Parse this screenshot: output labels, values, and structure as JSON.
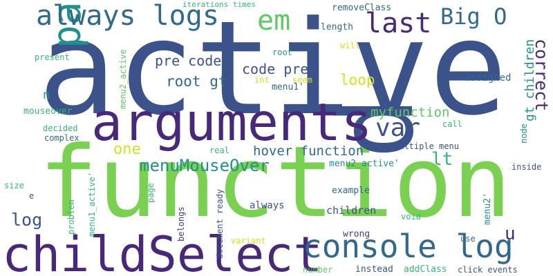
{
  "colors": {
    "background": "#ffffff",
    "dark_blue": "#3b528b",
    "purple": "#482878",
    "teal": "#21918c",
    "blue": "#31688e",
    "green": "#5ec962",
    "lime": "#7ad151",
    "yellow": "#d2e21b",
    "sea_green": "#35b779",
    "navy": "#443983"
  },
  "words": [
    {
      "text": "active",
      "color": "#3b528b"
    },
    {
      "text": "function",
      "color": "#7ad151"
    },
    {
      "text": "p",
      "color": "#3b528b"
    },
    {
      "text": "arguments",
      "color": "#482878"
    },
    {
      "text": "childSelect",
      "color": "#482878"
    },
    {
      "text": "console log",
      "color": "#31688e"
    },
    {
      "text": "parent",
      "color": "#21918c"
    },
    {
      "text": "always logs",
      "color": "#31688e"
    },
    {
      "text": "em",
      "color": "#5ec962"
    },
    {
      "text": "last",
      "color": "#482878"
    },
    {
      "text": "Big O",
      "color": "#31688e"
    },
    {
      "text": "var",
      "color": "#3b528b"
    },
    {
      "text": "correct",
      "color": "#482878"
    },
    {
      "text": "gt children",
      "color": "#21918c"
    },
    {
      "text": "pre code",
      "color": "#3b528b"
    },
    {
      "text": "code pre",
      "color": "#3b528b"
    },
    {
      "text": "root gt",
      "color": "#31688e"
    },
    {
      "text": "loop",
      "color": "#d2e21b"
    },
    {
      "text": "menuMouseOver",
      "color": "#21918c"
    },
    {
      "text": "one",
      "color": "#d2e21b"
    },
    {
      "text": "hover function",
      "color": "#31688e"
    },
    {
      "text": "myfunction",
      "color": "#5ec962"
    },
    {
      "text": "lt",
      "color": "#35b779"
    },
    {
      "text": "log",
      "color": "#3b528b"
    },
    {
      "text": "u",
      "color": "#482878"
    },
    {
      "text": "n",
      "color": "#21918c"
    },
    {
      "text": "iterations times",
      "color": "#35b779"
    },
    {
      "text": "seem",
      "color": "#d2e21b"
    },
    {
      "text": "removeClass",
      "color": "#31688e"
    },
    {
      "text": "length",
      "color": "#31688e"
    },
    {
      "text": "will",
      "color": "#d2e21b"
    },
    {
      "text": "menu2_active",
      "color": "#5ec962"
    },
    {
      "text": "present",
      "color": "#35b779"
    },
    {
      "text": "root",
      "color": "#21918c"
    },
    {
      "text": "int",
      "color": "#d2e21b"
    },
    {
      "text": "menu1'",
      "color": "#31688e"
    },
    {
      "text": "assigned",
      "color": "#31688e"
    },
    {
      "text": "mouseover",
      "color": "#35b779"
    },
    {
      "text": "decided",
      "color": "#35b779"
    },
    {
      "text": "complex",
      "color": "#31688e"
    },
    {
      "text": "call",
      "color": "#35b779"
    },
    {
      "text": "node",
      "color": "#21918c"
    },
    {
      "text": "multiple menu",
      "color": "#3b528b"
    },
    {
      "text": "real",
      "color": "#35b779"
    },
    {
      "text": "menu2_active'",
      "color": "#21918c"
    },
    {
      "text": "inside",
      "color": "#3b528b"
    },
    {
      "text": "size",
      "color": "#35b779"
    },
    {
      "text": "e",
      "color": "#3b528b"
    },
    {
      "text": "example",
      "color": "#31688e"
    },
    {
      "text": "page",
      "color": "#35b779"
    },
    {
      "text": "always",
      "color": "#3b528b"
    },
    {
      "text": "children",
      "color": "#3b528b"
    },
    {
      "text": "problem",
      "color": "#35b779"
    },
    {
      "text": "menu1_active'",
      "color": "#35b779"
    },
    {
      "text": "belongs",
      "color": "#443983"
    },
    {
      "text": "document ready",
      "color": "#3b528b"
    },
    {
      "text": "wrong",
      "color": "#443983"
    },
    {
      "text": "void",
      "color": "#35b779"
    },
    {
      "text": "menu2'",
      "color": "#21918c"
    },
    {
      "text": "use",
      "color": "#31688e"
    },
    {
      "text": "variant",
      "color": "#d2e21b"
    },
    {
      "text": "number",
      "color": "#5ec962"
    },
    {
      "text": "instead",
      "color": "#3b528b"
    },
    {
      "text": "addClass",
      "color": "#35b779"
    },
    {
      "text": "click events",
      "color": "#3b528b"
    }
  ]
}
